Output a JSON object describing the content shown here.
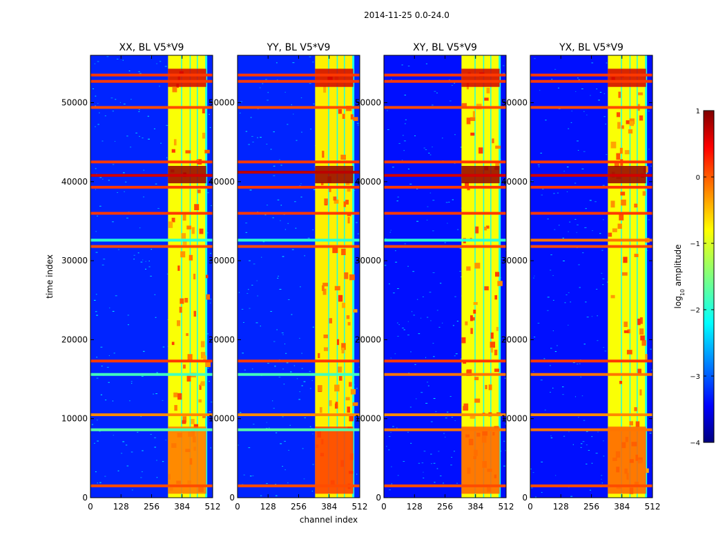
{
  "figure": {
    "suptitle": "2014-11-25 0.0-24.0"
  },
  "colorbar": {
    "label_main": "log",
    "label_sub": "10",
    "label_rest": " amplitude",
    "range": [
      -4,
      1
    ],
    "ticks": [
      "1",
      "0",
      "−1",
      "−2",
      "−3",
      "−4"
    ],
    "tick_values": [
      1,
      0,
      -1,
      -2,
      -3,
      -4
    ],
    "colormap": "jet"
  },
  "chart_data": [
    {
      "type": "heatmap",
      "title": "XX, BL V5*V9",
      "xlabel": "",
      "ylabel": "time index",
      "xlim": [
        0,
        512
      ],
      "ylim": [
        0,
        56000
      ],
      "xticks": [
        "0",
        "128",
        "256",
        "384",
        "512"
      ],
      "yticks": [
        "0",
        "10000",
        "20000",
        "30000",
        "40000",
        "50000"
      ],
      "background_level": -3.2,
      "vertical_bands": [
        [
          325,
          384,
          -0.9
        ],
        [
          384,
          420,
          -0.9
        ],
        [
          420,
          450,
          -0.9
        ],
        [
          450,
          485,
          -0.9
        ]
      ],
      "horizontal_lines": [
        {
          "t": 1500,
          "level": 0.0
        },
        {
          "t": 8600,
          "level": -1.7
        },
        {
          "t": 10500,
          "level": -0.3
        },
        {
          "t": 15600,
          "level": -1.8
        },
        {
          "t": 17300,
          "level": 0.1
        },
        {
          "t": 31800,
          "level": 0.0
        },
        {
          "t": 32600,
          "level": -1.9
        },
        {
          "t": 36000,
          "level": 0.1
        },
        {
          "t": 39300,
          "level": 0.1
        },
        {
          "t": 40800,
          "level": 0.6
        },
        {
          "t": 42500,
          "level": 0.1
        },
        {
          "t": 49400,
          "level": 0.0
        },
        {
          "t": 52700,
          "level": 0.1
        },
        {
          "t": 53500,
          "level": 0.1
        }
      ],
      "hot_blocks": [
        [
          325,
          485,
          39800,
          42000,
          0.9
        ],
        [
          325,
          485,
          52000,
          54300,
          0.6
        ],
        [
          325,
          485,
          500,
          9000,
          -0.2
        ]
      ]
    },
    {
      "type": "heatmap",
      "title": "YY, BL V5*V9",
      "xlabel": "channel index",
      "ylabel": "",
      "xlim": [
        0,
        512
      ],
      "ylim": [
        0,
        56000
      ],
      "xticks": [
        "0",
        "128",
        "256",
        "384",
        "512"
      ],
      "yticks": [
        "0",
        "10000",
        "20000",
        "30000",
        "40000",
        "50000"
      ],
      "background_level": -3.2,
      "vertical_bands": [
        [
          325,
          384,
          -0.8
        ],
        [
          384,
          420,
          -0.8
        ],
        [
          420,
          450,
          -0.8
        ],
        [
          450,
          485,
          -0.8
        ]
      ],
      "horizontal_lines": [
        {
          "t": 1500,
          "level": 0.0
        },
        {
          "t": 8600,
          "level": -1.7
        },
        {
          "t": 10500,
          "level": -0.3
        },
        {
          "t": 15600,
          "level": -1.8
        },
        {
          "t": 17300,
          "level": 0.1
        },
        {
          "t": 31800,
          "level": 0.0
        },
        {
          "t": 32600,
          "level": -1.9
        },
        {
          "t": 36000,
          "level": 0.1
        },
        {
          "t": 39300,
          "level": 0.1
        },
        {
          "t": 41200,
          "level": 0.7
        },
        {
          "t": 42500,
          "level": 0.1
        },
        {
          "t": 49400,
          "level": 0.0
        },
        {
          "t": 52700,
          "level": 0.1
        },
        {
          "t": 53500,
          "level": 0.1
        }
      ],
      "hot_blocks": [
        [
          325,
          485,
          39800,
          42000,
          0.9
        ],
        [
          325,
          485,
          52000,
          54300,
          0.6
        ],
        [
          325,
          485,
          500,
          9000,
          0.1
        ]
      ]
    },
    {
      "type": "heatmap",
      "title": "XY, BL V5*V9",
      "xlabel": "",
      "ylabel": "",
      "xlim": [
        0,
        512
      ],
      "ylim": [
        0,
        56000
      ],
      "xticks": [
        "0",
        "128",
        "256",
        "384",
        "512"
      ],
      "yticks": [
        "0",
        "10000",
        "20000",
        "30000",
        "40000",
        "50000"
      ],
      "background_level": -3.3,
      "vertical_bands": [
        [
          325,
          384,
          -0.9
        ],
        [
          384,
          420,
          -0.9
        ],
        [
          420,
          450,
          -0.9
        ],
        [
          450,
          485,
          -0.9
        ]
      ],
      "horizontal_lines": [
        {
          "t": 1500,
          "level": 0.0
        },
        {
          "t": 8600,
          "level": -0.2
        },
        {
          "t": 10500,
          "level": -0.3
        },
        {
          "t": 15600,
          "level": -0.2
        },
        {
          "t": 17300,
          "level": 0.1
        },
        {
          "t": 31800,
          "level": 0.0
        },
        {
          "t": 32600,
          "level": -1.9
        },
        {
          "t": 36000,
          "level": 0.1
        },
        {
          "t": 39300,
          "level": 0.1
        },
        {
          "t": 40800,
          "level": 0.6
        },
        {
          "t": 42500,
          "level": 0.1
        },
        {
          "t": 49400,
          "level": 0.0
        },
        {
          "t": 52700,
          "level": 0.1
        },
        {
          "t": 53500,
          "level": 0.1
        }
      ],
      "hot_blocks": [
        [
          325,
          485,
          39800,
          42000,
          0.9
        ],
        [
          325,
          485,
          52000,
          54300,
          0.6
        ],
        [
          325,
          485,
          500,
          9000,
          -0.1
        ]
      ]
    },
    {
      "type": "heatmap",
      "title": "YX, BL V5*V9",
      "xlabel": "",
      "ylabel": "",
      "xlim": [
        0,
        512
      ],
      "ylim": [
        0,
        56000
      ],
      "xticks": [
        "0",
        "128",
        "256",
        "384",
        "512"
      ],
      "yticks": [
        "0",
        "10000",
        "20000",
        "30000",
        "40000",
        "50000"
      ],
      "background_level": -3.3,
      "vertical_bands": [
        [
          325,
          384,
          -0.9
        ],
        [
          384,
          420,
          -0.9
        ],
        [
          420,
          450,
          -0.9
        ],
        [
          450,
          485,
          -0.9
        ]
      ],
      "horizontal_lines": [
        {
          "t": 1500,
          "level": 0.0
        },
        {
          "t": 8600,
          "level": -0.2
        },
        {
          "t": 10500,
          "level": -0.3
        },
        {
          "t": 15600,
          "level": -0.2
        },
        {
          "t": 17300,
          "level": 0.1
        },
        {
          "t": 31800,
          "level": 0.0
        },
        {
          "t": 32600,
          "level": -0.2
        },
        {
          "t": 36000,
          "level": 0.1
        },
        {
          "t": 39300,
          "level": 0.1
        },
        {
          "t": 40800,
          "level": 0.6
        },
        {
          "t": 42500,
          "level": 0.1
        },
        {
          "t": 49400,
          "level": 0.0
        },
        {
          "t": 52700,
          "level": 0.1
        },
        {
          "t": 53500,
          "level": 0.1
        }
      ],
      "hot_blocks": [
        [
          325,
          485,
          39800,
          42000,
          0.9
        ],
        [
          325,
          485,
          52000,
          54300,
          0.6
        ],
        [
          325,
          485,
          500,
          9000,
          -0.1
        ]
      ]
    }
  ]
}
